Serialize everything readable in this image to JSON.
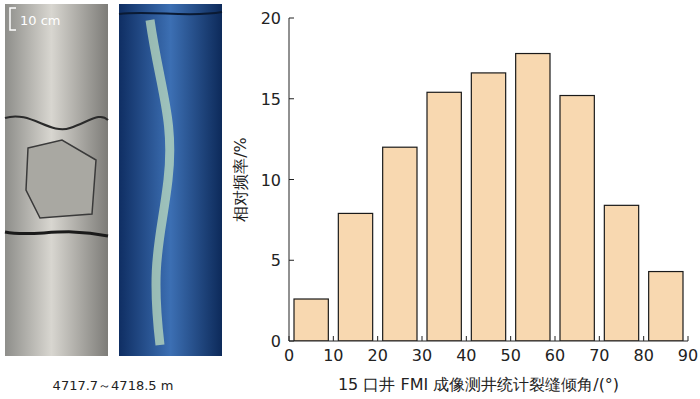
{
  "chart_data": {
    "type": "histogram",
    "xlabel": "15 口井 FMI 成像测井统计裂缝倾角/(°)",
    "ylabel": "相对频率/%",
    "bins": [
      0,
      10,
      20,
      30,
      40,
      50,
      60,
      70,
      80,
      90
    ],
    "values": [
      2.6,
      7.9,
      12.0,
      15.4,
      16.6,
      17.8,
      15.2,
      8.4,
      4.3
    ],
    "color": "#f8d8b0",
    "xlim": [
      0,
      90
    ],
    "xticks": [
      0,
      10,
      20,
      30,
      40,
      50,
      60,
      70,
      80,
      90
    ],
    "ylim": [
      0,
      20
    ],
    "yticks": [
      0,
      5,
      10,
      15,
      20
    ],
    "grid": false
  },
  "core_photo": {
    "scale_label": "10 cm",
    "depth_label": "4717.7～4718.5 m"
  }
}
